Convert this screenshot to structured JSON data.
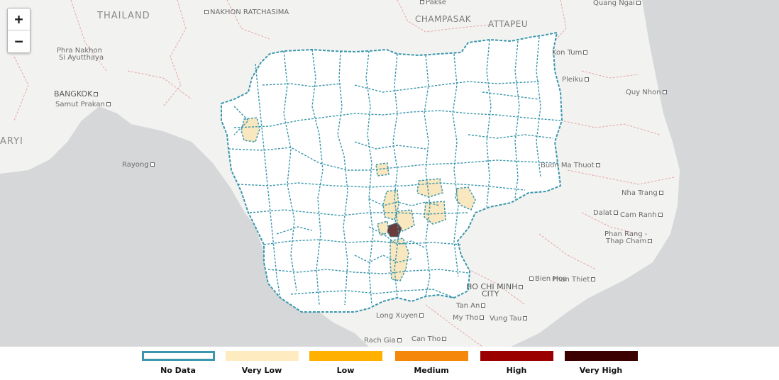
{
  "map": {
    "zoom_in_label": "+",
    "zoom_out_label": "−",
    "labels": {
      "thailand": "THAILAND",
      "nakhon_ratchasima": "NAKHON RATCHASIMA",
      "pakse": "Pakse",
      "quang_ngai": "Quang Ngai",
      "champasak": "CHAMPASAK",
      "attapeu": "ATTAPEU",
      "phra_nakhon": "Phra Nakhon",
      "si_ayutthaya": "Si Ayutthaya",
      "kon_tum": "Kon Tum",
      "pleiku": "Pleiku",
      "bangkok": "BANGKOK",
      "samut_prakan": "Samut Prakan",
      "quy_nhon": "Quy Nhon",
      "ary": "ARYI",
      "rayong": "Rayong",
      "buon_ma_thuot": "Buon Ma Thuot",
      "nha_trang": "Nha Trang",
      "dalat": "Dalat",
      "cam_ranh": "Cam Ranh",
      "phan_rang": "Phan Rang -",
      "thap_cham": "Thap Cham",
      "bien_hoa": "Bien Hoa",
      "phan_thiet": "Phan Thiet",
      "ho_chi_minh": "HO CHI MINH",
      "city": "CITY",
      "tan_an": "Tan An",
      "long_xuyen": "Long Xuyen",
      "my_tho": "My Tho",
      "vung_tau": "Vung Tau",
      "rach_gia": "Rach Gia",
      "can_tho": "Can Tho"
    }
  },
  "legend": {
    "items": [
      {
        "label": "No Data",
        "color": "#ffffff",
        "border": "#3a97ad"
      },
      {
        "label": "Very Low",
        "color": "#ffebc0"
      },
      {
        "label": "Low",
        "color": "#ffb000"
      },
      {
        "label": "Medium",
        "color": "#f5880a"
      },
      {
        "label": "High",
        "color": "#9b0000"
      },
      {
        "label": "Very High",
        "color": "#3b0000"
      }
    ]
  },
  "colors": {
    "district_border": "#3a97ad",
    "no_data_fill": "#ffffff",
    "very_low_fill": "#f8e7bf",
    "very_high_fill": "#6b3a3a",
    "water": "#d6d7d9",
    "land": "#f2f2f0",
    "province_border": "#e5a7a7"
  }
}
